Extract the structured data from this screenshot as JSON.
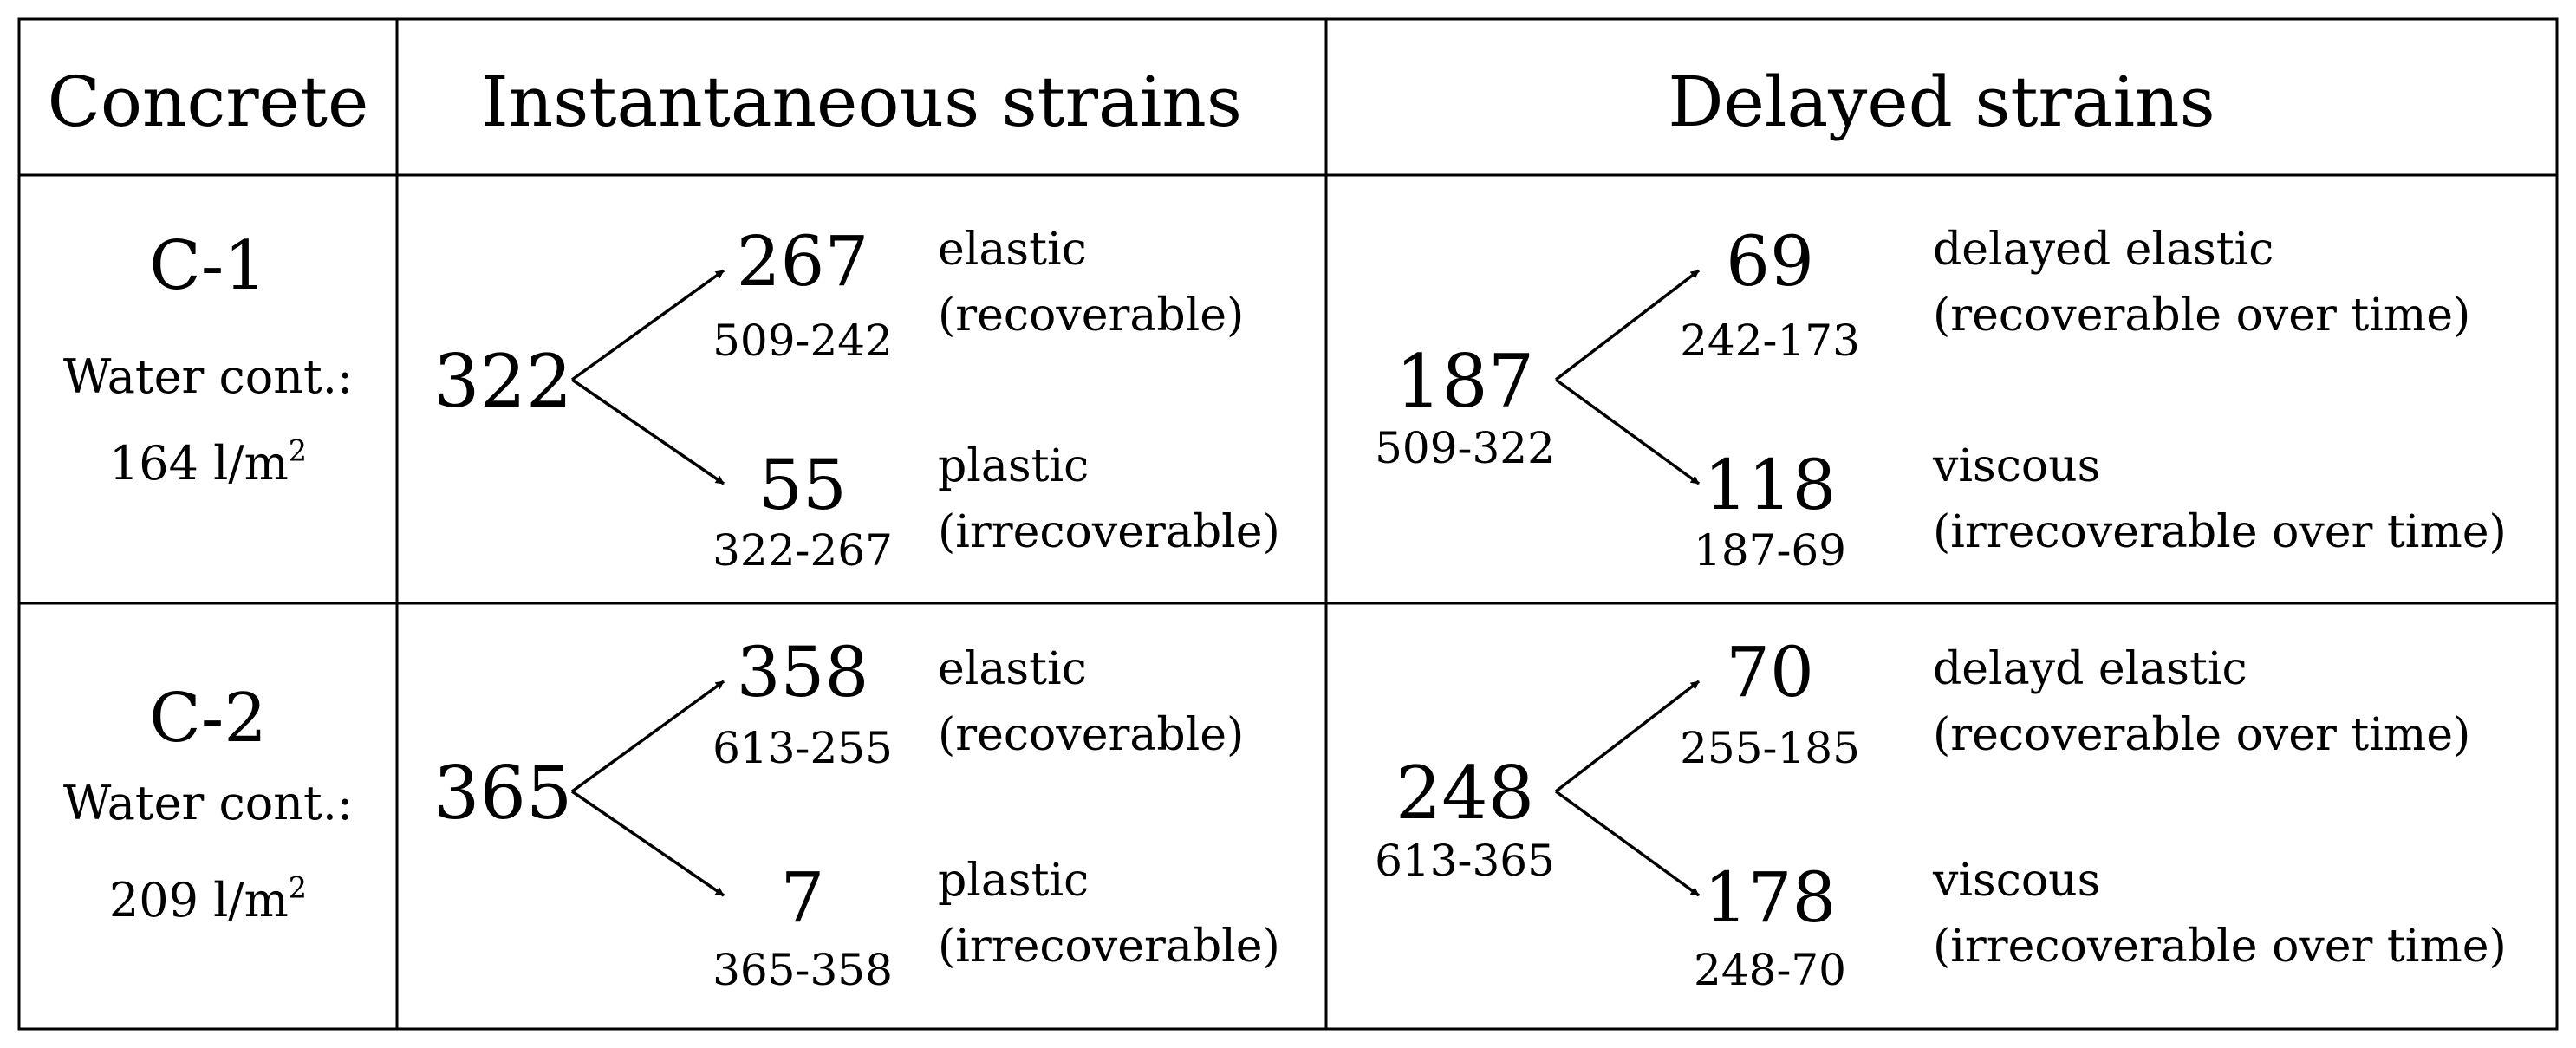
{
  "headers": [
    "Concrete",
    "Instantaneous strains",
    "Delayed strains"
  ],
  "rows": [
    {
      "concrete": {
        "name": "C-1",
        "water_label": "Water cont.:",
        "water_value": "164 l/m",
        "water_exp": "2"
      },
      "instantaneous": {
        "total": "322",
        "upper": {
          "value": "267",
          "calc": "509-242",
          "label1": "elastic",
          "label2": "(recoverable)"
        },
        "lower": {
          "value": "55",
          "calc": "322-267",
          "label1": "plastic",
          "label2": "(irrecoverable)"
        }
      },
      "delayed": {
        "total": "187",
        "total_calc": "509-322",
        "upper": {
          "value": "69",
          "calc": "242-173",
          "label1": "delayed elastic",
          "label2": "(recoverable over time)"
        },
        "lower": {
          "value": "118",
          "calc": "187-69",
          "label1": "viscous",
          "label2": "(irrecoverable over time)"
        }
      }
    },
    {
      "concrete": {
        "name": "C-2",
        "water_label": "Water cont.:",
        "water_value": "209 l/m",
        "water_exp": "2"
      },
      "instantaneous": {
        "total": "365",
        "upper": {
          "value": "358",
          "calc": "613-255",
          "label1": "elastic",
          "label2": "(recoverable)"
        },
        "lower": {
          "value": "7",
          "calc": "365-358",
          "label1": "plastic",
          "label2": "(irrecoverable)"
        }
      },
      "delayed": {
        "total": "248",
        "total_calc": "613-365",
        "upper": {
          "value": "70",
          "calc": "255-185",
          "label1": "delayd elastic",
          "label2": "(recoverable over time)"
        },
        "lower": {
          "value": "178",
          "calc": "248-70",
          "label1": "viscous",
          "label2": "(irrecoverable over time)"
        }
      }
    }
  ]
}
